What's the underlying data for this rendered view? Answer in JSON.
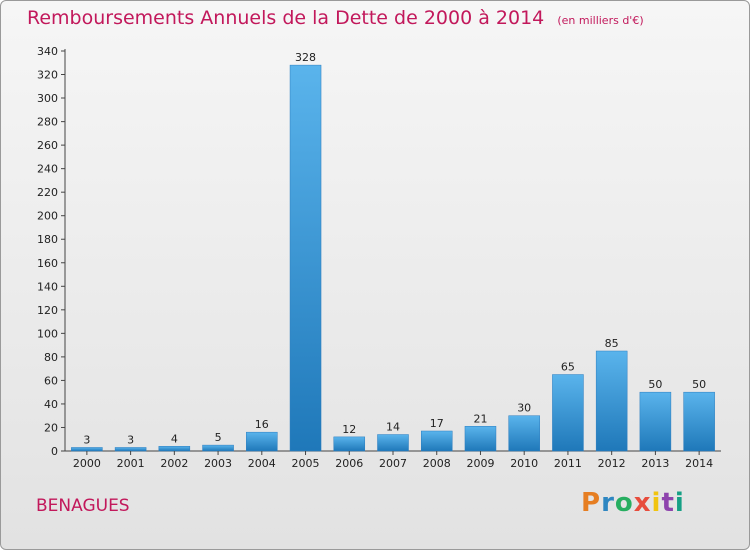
{
  "chart_data": {
    "type": "bar",
    "title": "Remboursements Annuels de la Dette de 2000 à 2014",
    "unit_note": "(en milliers d'€)",
    "categories": [
      "2000",
      "2001",
      "2002",
      "2003",
      "2004",
      "2005",
      "2006",
      "2007",
      "2008",
      "2009",
      "2010",
      "2011",
      "2012",
      "2013",
      "2014"
    ],
    "values": [
      3,
      3,
      4,
      5,
      16,
      328,
      12,
      14,
      17,
      21,
      30,
      65,
      85,
      50,
      50
    ],
    "ylim": [
      0,
      340
    ],
    "yticks": [
      0,
      20,
      40,
      60,
      80,
      100,
      120,
      140,
      160,
      180,
      200,
      220,
      240,
      260,
      280,
      300,
      320,
      340
    ],
    "grid": false,
    "bar_color": "#3a9ad9"
  },
  "commune": "BENAGUES",
  "logo": {
    "text": "Proxiti",
    "colors": [
      "#e67e22",
      "#2e86c1",
      "#27ae60",
      "#e74c3c",
      "#f1c40f",
      "#8e44ad",
      "#16a085"
    ]
  },
  "colors": {
    "title": "#c2185b",
    "axis": "#333333"
  }
}
